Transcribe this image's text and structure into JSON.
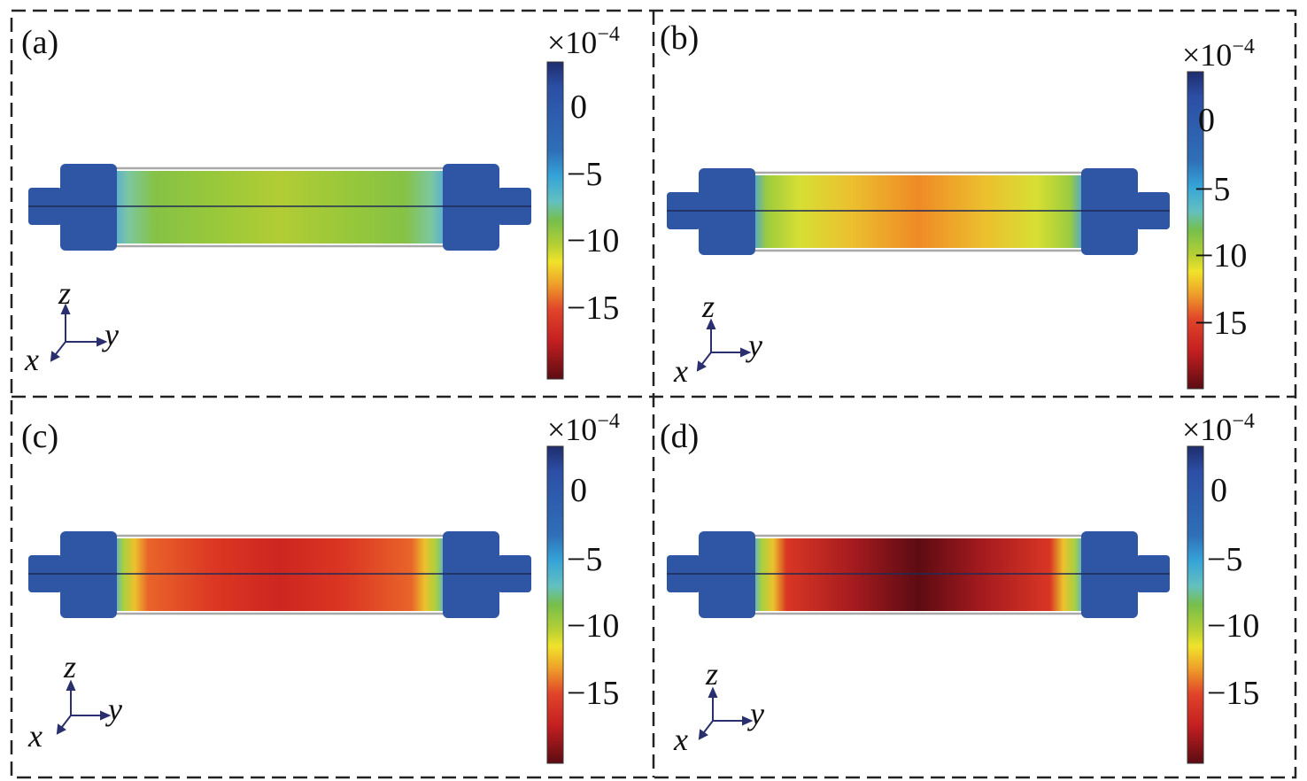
{
  "panels": [
    {
      "id": "a",
      "label": "(a)",
      "strain_gradient": [
        {
          "offset": "0",
          "color": "#5aaed2"
        },
        {
          "offset": "0.04",
          "color": "#7cc7a0"
        },
        {
          "offset": "0.12",
          "color": "#86c246"
        },
        {
          "offset": "0.3",
          "color": "#98c83a"
        },
        {
          "offset": "0.5",
          "color": "#b2cc35"
        },
        {
          "offset": "0.7",
          "color": "#98c83a"
        },
        {
          "offset": "0.88",
          "color": "#86c246"
        },
        {
          "offset": "0.96",
          "color": "#7cc7a0"
        },
        {
          "offset": "1",
          "color": "#5aaed2"
        }
      ]
    },
    {
      "id": "b",
      "label": "(b)",
      "strain_gradient": [
        {
          "offset": "0",
          "color": "#4fa7cf"
        },
        {
          "offset": "0.04",
          "color": "#9ccb3e"
        },
        {
          "offset": "0.14",
          "color": "#d7df33"
        },
        {
          "offset": "0.3",
          "color": "#ecbf2e"
        },
        {
          "offset": "0.5",
          "color": "#ef8a25"
        },
        {
          "offset": "0.7",
          "color": "#ecbf2e"
        },
        {
          "offset": "0.86",
          "color": "#d7df33"
        },
        {
          "offset": "0.96",
          "color": "#9ccb3e"
        },
        {
          "offset": "1",
          "color": "#4fa7cf"
        }
      ]
    },
    {
      "id": "c",
      "label": "(c)",
      "strain_gradient": [
        {
          "offset": "0",
          "color": "#5aaed2"
        },
        {
          "offset": "0.025",
          "color": "#a8d040"
        },
        {
          "offset": "0.06",
          "color": "#ecc22c"
        },
        {
          "offset": "0.1",
          "color": "#e9642a"
        },
        {
          "offset": "0.3",
          "color": "#db3723"
        },
        {
          "offset": "0.5",
          "color": "#cd2620"
        },
        {
          "offset": "0.7",
          "color": "#db3723"
        },
        {
          "offset": "0.9",
          "color": "#e9642a"
        },
        {
          "offset": "0.94",
          "color": "#ecc22c"
        },
        {
          "offset": "0.975",
          "color": "#a8d040"
        },
        {
          "offset": "1",
          "color": "#5aaed2"
        }
      ]
    },
    {
      "id": "d",
      "label": "(d)",
      "strain_gradient": [
        {
          "offset": "0",
          "color": "#5aaed2"
        },
        {
          "offset": "0.025",
          "color": "#a8d040"
        },
        {
          "offset": "0.06",
          "color": "#ecc22c"
        },
        {
          "offset": "0.1",
          "color": "#d93624"
        },
        {
          "offset": "0.3",
          "color": "#a61b1f"
        },
        {
          "offset": "0.5",
          "color": "#5c0b12"
        },
        {
          "offset": "0.7",
          "color": "#a61b1f"
        },
        {
          "offset": "0.9",
          "color": "#d93624"
        },
        {
          "offset": "0.94",
          "color": "#ecc22c"
        },
        {
          "offset": "0.975",
          "color": "#a8d040"
        },
        {
          "offset": "1",
          "color": "#5aaed2"
        }
      ]
    }
  ],
  "colorbar": {
    "multiplier_base": "×10",
    "multiplier_exp": "−4",
    "tick_labels": [
      "0",
      "−5",
      "−10",
      "−15"
    ],
    "gradient": [
      {
        "offset": "0",
        "color": "#1f2d6d"
      },
      {
        "offset": "0.08",
        "color": "#2c4fa6"
      },
      {
        "offset": "0.28",
        "color": "#2f6fb8"
      },
      {
        "offset": "0.36",
        "color": "#35a3d7"
      },
      {
        "offset": "0.44",
        "color": "#63c0c0"
      },
      {
        "offset": "0.5",
        "color": "#76bf4b"
      },
      {
        "offset": "0.58",
        "color": "#b8d033"
      },
      {
        "offset": "0.63",
        "color": "#f0e32b"
      },
      {
        "offset": "0.7",
        "color": "#efa02a"
      },
      {
        "offset": "0.78",
        "color": "#e1452a"
      },
      {
        "offset": "0.88",
        "color": "#c41f21"
      },
      {
        "offset": "1",
        "color": "#5b0c12"
      }
    ]
  },
  "axes": {
    "z": "z",
    "y": "y",
    "x": "x"
  },
  "colors": {
    "part_blue": "#2f56a4",
    "part_blue_dark": "#1f3c80",
    "outline": "#a9a9a9",
    "frame": "#222222",
    "arrow": "#2a2f6e"
  }
}
